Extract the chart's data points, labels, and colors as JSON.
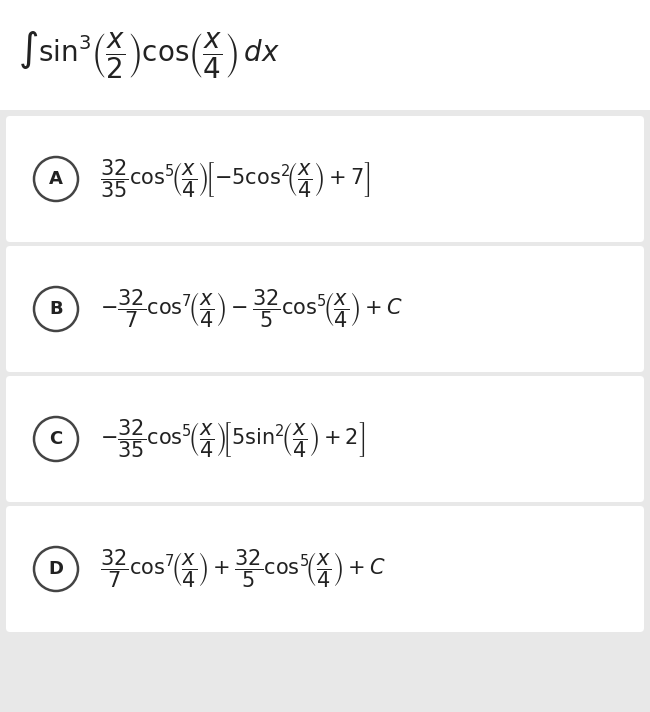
{
  "title": "$\\int \\sin^3\\!\\left(\\dfrac{x}{2}\\right)\\cos\\!\\left(\\dfrac{x}{4}\\right)\\, dx$",
  "background_color": "#e8e8e8",
  "box_color": "#ffffff",
  "text_color": "#222222",
  "circle_edge_color": "#444444",
  "options": [
    {
      "label": "A",
      "formula": "$\\dfrac{32}{35}\\mathrm{cos}^5\\!\\left(\\dfrac{x}{4}\\right)\\!\\left[-5\\mathrm{cos}^2\\!\\left(\\dfrac{x}{4}\\right)+7\\right]$"
    },
    {
      "label": "B",
      "formula": "$-\\dfrac{32}{7}\\mathrm{cos}^7\\!\\left(\\dfrac{x}{4}\\right) - \\dfrac{32}{5}\\mathrm{cos}^5\\!\\left(\\dfrac{x}{4}\\right) + C$"
    },
    {
      "label": "C",
      "formula": "$-\\dfrac{32}{35}\\mathrm{cos}^5\\!\\left(\\dfrac{x}{4}\\right)\\!\\left[5\\mathrm{sin}^2\\!\\left(\\dfrac{x}{4}\\right)+2\\right]$"
    },
    {
      "label": "D",
      "formula": "$\\dfrac{32}{7}\\mathrm{cos}^7\\!\\left(\\dfrac{x}{4}\\right) + \\dfrac{32}{5}\\mathrm{cos}^5\\!\\left(\\dfrac{x}{4}\\right) + C$"
    }
  ],
  "title_fontsize": 20,
  "option_fontsize": 15,
  "label_fontsize": 13,
  "title_bg_color": "#ffffff"
}
